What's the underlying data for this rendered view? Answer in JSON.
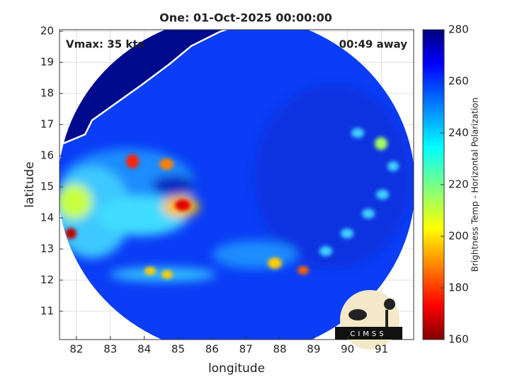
{
  "chart_data": {
    "type": "heatmap",
    "title": "One: 01-Oct-2025 00:00:00",
    "annotations": [
      "Vmax: 35 kts",
      "00:49 away"
    ],
    "xlabel": "longitude",
    "ylabel": "latitude",
    "xlim": [
      81.5,
      91.95
    ],
    "ylim": [
      10.09,
      20.05
    ],
    "xticks": [
      82,
      83,
      84,
      85,
      86,
      87,
      88,
      89,
      90,
      91
    ],
    "yticks": [
      11,
      12,
      13,
      14,
      15,
      16,
      17,
      18,
      19,
      20
    ],
    "grid": true,
    "colorbar": {
      "label": "Brightness Temp - Horizontal Polarization",
      "colormap": "jet",
      "lim": [
        160,
        280
      ],
      "ticks": [
        160,
        180,
        200,
        220,
        240,
        260,
        280
      ]
    },
    "logo": "CIMSS"
  }
}
